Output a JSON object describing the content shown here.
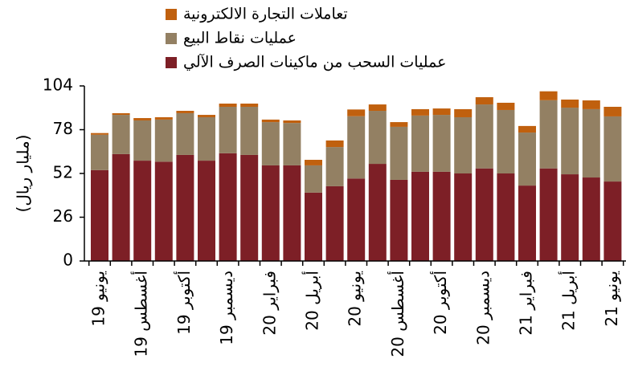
{
  "chart_data": {
    "type": "stacked_bar",
    "y_label": "(مليار ريال)",
    "categories": [
      "يونيو 19",
      null,
      "أغسطس 19",
      null,
      "أكتوبر 19",
      null,
      "ديسمبر 19",
      null,
      "فبراير 20",
      null,
      "أبريل 20",
      null,
      "يونيو 20",
      null,
      "أغسطس 20",
      null,
      "أكتوبر 20",
      null,
      "ديسمبر 20",
      null,
      "فبراير 21",
      null,
      "أبريل 21",
      null,
      "يونيو 21"
    ],
    "series": [
      {
        "name": "عمليات السحب من ماكينات الصرف الآلي",
        "color": "#7d1f26",
        "values": [
          54,
          63.5,
          59.6,
          59,
          63,
          59.6,
          64,
          63,
          56.8,
          56.8,
          40.6,
          44.4,
          49,
          57.7,
          48.2,
          53,
          53,
          52,
          55,
          52,
          44.8,
          55,
          51.5,
          49.6,
          47.2
        ]
      },
      {
        "name": "عمليات نقاط البيع",
        "color": "#938063",
        "values": [
          21,
          23.3,
          23.9,
          25,
          24.8,
          25.8,
          27.6,
          28.6,
          25.7,
          25.2,
          16.2,
          23.3,
          37,
          31.5,
          31.5,
          33.4,
          33.8,
          33.4,
          38,
          37.7,
          31.5,
          40.5,
          39.6,
          40.6,
          38.7
        ]
      },
      {
        "name": "تعاملات التجارة الالكترونية",
        "color": "#c0600e",
        "values": [
          1,
          1,
          1.4,
          1.4,
          1.4,
          1.4,
          1.9,
          1.9,
          1.5,
          1.5,
          3.3,
          3.9,
          4,
          3.8,
          2.8,
          3.8,
          3.8,
          4.8,
          4.3,
          4.3,
          3.9,
          5.3,
          4.8,
          5.2,
          5.7
        ]
      }
    ],
    "ylim": [
      0,
      104
    ],
    "yticks": [
      0,
      26,
      52,
      78,
      104
    ]
  }
}
